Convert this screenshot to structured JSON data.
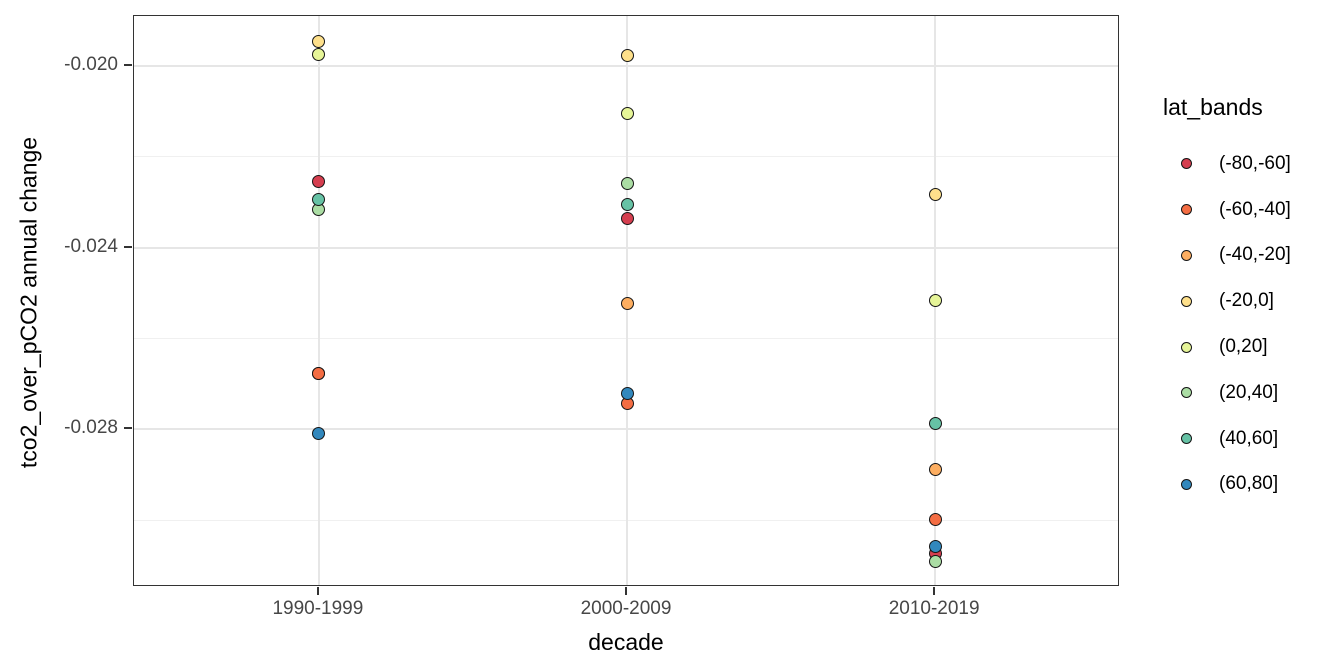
{
  "chart_data": {
    "type": "scatter",
    "title": "",
    "xlabel": "decade",
    "ylabel": "tco2_over_pCO2 annual change",
    "categories": [
      "1990-1999",
      "2000-2009",
      "2010-2019"
    ],
    "legend_title": "lat_bands",
    "legend_position": "right",
    "ylim": [
      -0.03147,
      -0.0189
    ],
    "y_major_ticks": [
      -0.02,
      -0.024,
      -0.028
    ],
    "y_tick_labels": [
      "-0.020",
      "-0.024",
      "-0.028"
    ],
    "y_minor_ticks": [
      -0.022,
      -0.026,
      -0.03
    ],
    "grid": true,
    "panel_border": true,
    "point_outline_color": "#151515",
    "series": [
      {
        "name": "(-80,-60]",
        "color": "#D53E4F",
        "values": [
          -0.02255,
          -0.02336,
          -0.03074
        ]
      },
      {
        "name": "(-60,-40]",
        "color": "#F46D43",
        "values": [
          -0.02676,
          -0.02744,
          -0.02999
        ]
      },
      {
        "name": "(-40,-20]",
        "color": "#FDAE61",
        "values": [
          -0.02676,
          -0.02524,
          -0.02888
        ]
      },
      {
        "name": "(-20,0]",
        "color": "#FEE08B",
        "values": [
          -0.01946,
          -0.01976,
          -0.02283
        ]
      },
      {
        "name": "(0,20]",
        "color": "#E6F598",
        "values": [
          -0.01975,
          -0.02105,
          -0.02517
        ]
      },
      {
        "name": "(20,40]",
        "color": "#ABDDA4",
        "values": [
          -0.02316,
          -0.02259,
          -0.03091
        ]
      },
      {
        "name": "(40,60]",
        "color": "#66C2A5",
        "values": [
          -0.02294,
          -0.02306,
          -0.02786
        ]
      },
      {
        "name": "(60,80]",
        "color": "#3288BD",
        "values": [
          -0.0281,
          -0.02722,
          -0.03057
        ]
      }
    ],
    "draw_order": [
      0,
      2,
      1,
      3,
      4,
      5,
      6,
      7
    ]
  }
}
